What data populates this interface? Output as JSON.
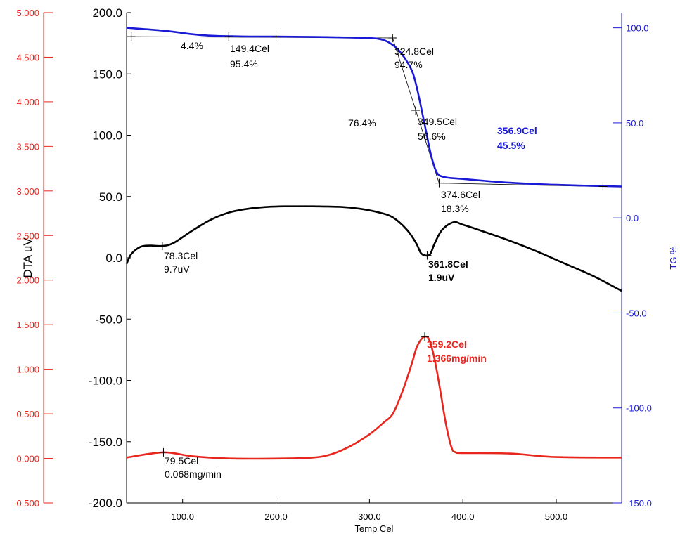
{
  "chart_data": {
    "type": "line",
    "xlabel": "Temp Cel",
    "left_axis_label": "DTA uV",
    "right_axis_label": "TG %",
    "xlim": [
      40,
      570
    ],
    "x_ticks": [
      "100.0",
      "200.0",
      "300.0",
      "400.0",
      "500.0"
    ],
    "x_tick_values": [
      100,
      200,
      300,
      400,
      500
    ],
    "axis_red": {
      "ylim": [
        -0.5,
        5.0
      ],
      "tick_values": [
        5.0,
        4.5,
        4.0,
        3.5,
        3.0,
        2.5,
        2.0,
        1.5,
        1.0,
        0.5,
        0.0,
        -0.5
      ],
      "ticks": [
        "5.000",
        "4.500",
        "4.000",
        "3.500",
        "3.000",
        "2.500",
        "2.000",
        "1.500",
        "1.000",
        "0.500",
        "0.000",
        "-0.500"
      ]
    },
    "axis_black": {
      "ylim": [
        -200,
        200
      ],
      "tick_values": [
        200,
        150,
        100,
        50,
        0,
        -50,
        -100,
        -150,
        -200
      ],
      "ticks": [
        "200.0",
        "150.0",
        "100.0",
        "50.0",
        "0.0",
        "-50.0",
        "-100.0",
        "-150.0",
        "-200.0"
      ]
    },
    "axis_blue": {
      "ylim": [
        -150,
        108
      ],
      "tick_values": [
        100,
        50,
        0,
        -50,
        -100,
        -150
      ],
      "ticks": [
        "100.0",
        "50.0",
        "0.0",
        "-50.0",
        "-100.0",
        "-150.0"
      ]
    },
    "series": [
      {
        "axis": "blue",
        "color": "#1a1ad6",
        "x": [
          40,
          80,
          120,
          160,
          200,
          240,
          280,
          310,
          325,
          335,
          345,
          350,
          355,
          360,
          366,
          372,
          380,
          400,
          450,
          500,
          570
        ],
        "y": [
          100,
          98.5,
          96.2,
          95.5,
          95.4,
          95.2,
          94.9,
          94.2,
          91,
          86,
          78,
          70,
          59,
          47,
          33,
          24,
          21.5,
          20.5,
          18.5,
          17.4,
          16.5
        ]
      },
      {
        "axis": "black",
        "color": "#000000",
        "x": [
          40,
          45,
          55,
          65,
          78,
          90,
          110,
          130,
          150,
          170,
          190,
          210,
          240,
          270,
          290,
          310,
          325,
          340,
          350,
          355,
          360,
          365,
          370,
          378,
          390,
          400,
          420,
          450,
          480,
          510,
          540,
          570
        ],
        "y": [
          -5,
          3,
          9,
          10,
          9.7,
          12,
          22,
          31,
          37,
          40,
          41.5,
          42,
          42,
          41.5,
          40,
          37,
          33,
          23,
          12,
          4,
          1.9,
          3,
          12,
          23,
          29,
          27,
          22,
          14,
          5,
          -5,
          -15,
          -27
        ]
      },
      {
        "axis": "red",
        "color": "#e8261e",
        "x": [
          40,
          79.5,
          110,
          150,
          200,
          240,
          260,
          280,
          300,
          315,
          325,
          335,
          345,
          350,
          355,
          359.2,
          364,
          370,
          376,
          382,
          388,
          392,
          400,
          450,
          500,
          570
        ],
        "y": [
          0.01,
          0.068,
          0.025,
          -0.001,
          -0.002,
          0.01,
          0.05,
          0.14,
          0.27,
          0.4,
          0.5,
          0.74,
          1.05,
          1.23,
          1.33,
          1.366,
          1.33,
          1.1,
          0.75,
          0.38,
          0.12,
          0.07,
          0.06,
          0.055,
          0.015,
          0.01
        ]
      }
    ],
    "annotations": {
      "tg": [
        {
          "text": "4.4%"
        },
        {
          "text": "149.4Cel"
        },
        {
          "text": "95.4%"
        },
        {
          "text": "324.8Cel"
        },
        {
          "text": "94.7%"
        },
        {
          "text": "76.4%"
        },
        {
          "text": "349.5Cel"
        },
        {
          "text": "56.6%"
        },
        {
          "text": "374.6Cel"
        },
        {
          "text": "18.3%"
        },
        {
          "text": "356.9Cel"
        },
        {
          "text": "45.5%"
        }
      ],
      "dta": [
        {
          "text": "78.3Cel"
        },
        {
          "text": "9.7uV"
        },
        {
          "text": "361.8Cel"
        },
        {
          "text": "1.9uV"
        }
      ],
      "dtg": [
        {
          "text": "79.5Cel"
        },
        {
          "text": "0.068mg/min"
        },
        {
          "text": "359.2Cel"
        },
        {
          "text": "1.366mg/min"
        }
      ]
    }
  }
}
